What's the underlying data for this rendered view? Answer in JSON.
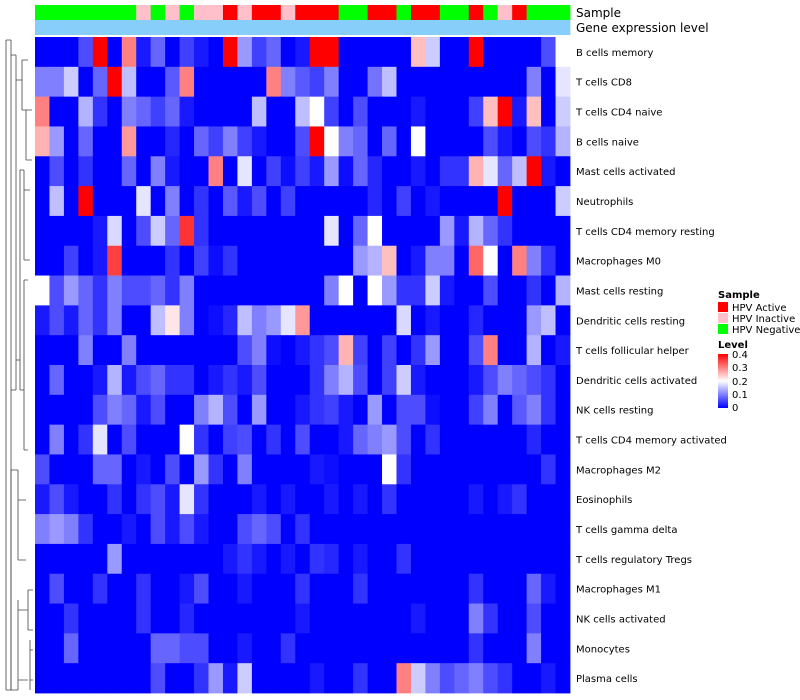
{
  "chart_data": {
    "type": "heatmap",
    "annotations": [
      {
        "name": "Sample",
        "legend_title": "Sample"
      },
      {
        "name": "Gene expression level"
      }
    ],
    "sample_legend": [
      {
        "label": "HPV Active",
        "color": "#ff0000"
      },
      {
        "label": "HPV Inactive",
        "color": "#ffc0cb"
      },
      {
        "label": "HPV Negative",
        "color": "#00ff00"
      }
    ],
    "level_legend": {
      "title": "Level",
      "ticks": [
        0.4,
        0.3,
        0.2,
        0.1,
        0
      ],
      "range": [
        0,
        0.4
      ],
      "colors": [
        "#0000ff",
        "#ffffff",
        "#ff0000"
      ]
    },
    "gene_expression_color": "#87cefa",
    "sample_groups": [
      "Negative",
      "Negative",
      "Negative",
      "Negative",
      "Negative",
      "Negative",
      "Negative",
      "Inactive",
      "Negative",
      "Inactive",
      "Negative",
      "Inactive",
      "Inactive",
      "Active",
      "Inactive",
      "Active",
      "Active",
      "Inactive",
      "Active",
      "Active",
      "Active",
      "Negative",
      "Negative",
      "Active",
      "Active",
      "Negative",
      "Active",
      "Active",
      "Negative",
      "Negative",
      "Active",
      "Negative",
      "Inactive",
      "Active",
      "Negative",
      "Negative",
      "Negative"
    ],
    "rows": [
      "B cells memory",
      "T cells CD8",
      "T cells CD4 naive",
      "B cells naive",
      "Mast cells activated",
      "Neutrophils",
      "T cells CD4 memory resting",
      "Macrophages M0",
      "Mast cells resting",
      "Dendritic cells resting",
      "T cells follicular helper",
      "Dendritic cells activated",
      "NK cells resting",
      "T cells CD4 memory activated",
      "Macrophages M2",
      "Eosinophils",
      "T cells gamma delta",
      "T cells regulatory  Tregs",
      "Macrophages M1",
      "NK cells activated",
      "Monocytes",
      "Plasma cells"
    ],
    "values": [
      [
        0,
        0,
        0,
        0.06,
        0.4,
        0,
        0.3,
        0.02,
        0.08,
        0,
        0.05,
        0.02,
        0,
        0.4,
        0.12,
        0.05,
        0.08,
        0,
        0.02,
        0.4,
        0.4,
        0,
        0,
        0,
        0,
        0,
        0.25,
        0.16,
        0,
        0,
        0.4,
        0,
        0,
        0,
        0,
        0.06,
        0.2
      ],
      [
        0.1,
        0.1,
        0.16,
        0,
        0.08,
        0.4,
        0.15,
        0,
        0,
        0.07,
        0.3,
        0,
        0,
        0,
        0,
        0,
        0.3,
        0.1,
        0.07,
        0.05,
        0.1,
        0,
        0,
        0.09,
        0.15,
        0,
        0,
        0,
        0,
        0,
        0,
        0,
        0,
        0,
        0.1,
        0,
        0.18
      ],
      [
        0.3,
        0,
        0,
        0.14,
        0.04,
        0,
        0.1,
        0.08,
        0.05,
        0.08,
        0.02,
        0,
        0,
        0,
        0,
        0.15,
        0,
        0,
        0.15,
        0.2,
        0.05,
        0,
        0.06,
        0,
        0,
        0,
        0.02,
        0,
        0,
        0,
        0.05,
        0.25,
        0.4,
        0.02,
        0.25,
        0,
        0.16
      ],
      [
        0.26,
        0.12,
        0,
        0.08,
        0,
        0,
        0.28,
        0,
        0,
        0.03,
        0,
        0.08,
        0.05,
        0.1,
        0.05,
        0.02,
        0,
        0,
        0.06,
        0.4,
        0.2,
        0.1,
        0.08,
        0,
        0.08,
        0,
        0.2,
        0,
        0,
        0,
        0,
        0.06,
        0.02,
        0,
        0.06,
        0.04,
        0.14
      ],
      [
        0,
        0.06,
        0,
        0.04,
        0,
        0,
        0.08,
        0,
        0.1,
        0.02,
        0,
        0,
        0.3,
        0,
        0.18,
        0,
        0.05,
        0.01,
        0.05,
        0.02,
        0.12,
        0.01,
        0.08,
        0.03,
        0,
        0,
        0.02,
        0,
        0.04,
        0.04,
        0.26,
        0.18,
        0.08,
        0.15,
        0.4,
        0.02,
        0
      ],
      [
        0,
        0.15,
        0,
        0.4,
        0,
        0,
        0,
        0.18,
        0,
        0.1,
        0,
        0.04,
        0,
        0.07,
        0.02,
        0.06,
        0,
        0.05,
        0,
        0,
        0,
        0,
        0,
        0.03,
        0,
        0.05,
        0,
        0.02,
        0,
        0,
        0,
        0,
        0.4,
        0,
        0,
        0,
        0.16
      ],
      [
        0,
        0,
        0,
        0,
        0.02,
        0.17,
        0,
        0.06,
        0.16,
        0.08,
        0.36,
        0.04,
        0,
        0,
        0,
        0,
        0,
        0,
        0,
        0,
        0.18,
        0,
        0.08,
        0.2,
        0,
        0,
        0,
        0,
        0.12,
        0.02,
        0.14,
        0.08,
        0.04,
        0,
        0,
        0,
        0
      ],
      [
        0,
        0,
        0.05,
        0,
        0.02,
        0.35,
        0,
        0,
        0,
        0.04,
        0,
        0.05,
        0.01,
        0.04,
        0,
        0,
        0,
        0,
        0,
        0,
        0,
        0,
        0.12,
        0.14,
        0.25,
        0,
        0.02,
        0.1,
        0.1,
        0,
        0.32,
        0.2,
        0,
        0.3,
        0.1,
        0.04,
        0
      ],
      [
        0.2,
        0.06,
        0.12,
        0.08,
        0.04,
        0.1,
        0.06,
        0.06,
        0.08,
        0.04,
        0.1,
        0,
        0,
        0,
        0,
        0,
        0,
        0,
        0,
        0,
        0.1,
        0.2,
        0,
        0.2,
        0.12,
        0.04,
        0.04,
        0.16,
        0.02,
        0,
        0,
        0.06,
        0,
        0,
        0.04,
        0,
        0.14
      ],
      [
        0.02,
        0.06,
        0.02,
        0.08,
        0.04,
        0.1,
        0,
        0,
        0.15,
        0.22,
        0.1,
        0,
        0.01,
        0.03,
        0.15,
        0.1,
        0.12,
        0.18,
        0.28,
        0,
        0,
        0,
        0,
        0,
        0,
        0.17,
        0,
        0.02,
        0,
        0,
        0.03,
        0,
        0,
        0,
        0.12,
        0.15,
        0
      ],
      [
        0,
        0,
        0,
        0.1,
        0,
        0,
        0.1,
        0,
        0,
        0,
        0,
        0,
        0,
        0,
        0.06,
        0.1,
        0.01,
        0,
        0.02,
        0.04,
        0.06,
        0.26,
        0.05,
        0,
        0.05,
        0,
        0.04,
        0.12,
        0,
        0,
        0.06,
        0.3,
        0,
        0,
        0.14,
        0,
        0.02
      ],
      [
        0,
        0.08,
        0,
        0,
        0.02,
        0.14,
        0.02,
        0.06,
        0.08,
        0.04,
        0.04,
        0,
        0.02,
        0.04,
        0.02,
        0.06,
        0,
        0,
        0,
        0.04,
        0.1,
        0.14,
        0.06,
        0,
        0.05,
        0.16,
        0.02,
        0,
        0,
        0,
        0.02,
        0.06,
        0.1,
        0.08,
        0.06,
        0.04,
        0
      ],
      [
        0,
        0,
        0,
        0,
        0.06,
        0.1,
        0.08,
        0.02,
        0.06,
        0,
        0,
        0.1,
        0.14,
        0.06,
        0,
        0.12,
        0,
        0,
        0.02,
        0.04,
        0.05,
        0.02,
        0,
        0.12,
        0,
        0.06,
        0.06,
        0.01,
        0,
        0,
        0.05,
        0.1,
        0,
        0.07,
        0.1,
        0.04,
        0
      ],
      [
        0,
        0.1,
        0,
        0.04,
        0.18,
        0,
        0.06,
        0,
        0,
        0,
        0.2,
        0.04,
        0,
        0.05,
        0.06,
        0,
        0.04,
        0,
        0.06,
        0,
        0,
        0.02,
        0.08,
        0.1,
        0.12,
        0.06,
        0,
        0.04,
        0,
        0,
        0,
        0,
        0,
        0,
        0.03,
        0,
        0
      ],
      [
        0.06,
        0,
        0,
        0,
        0.08,
        0.08,
        0,
        0.02,
        0,
        0.06,
        0,
        0.12,
        0.04,
        0,
        0.1,
        0,
        0,
        0,
        0,
        0.02,
        0.01,
        0,
        0,
        0,
        0.2,
        0.04,
        0,
        0,
        0,
        0,
        0,
        0,
        0,
        0,
        0,
        0.04,
        0
      ],
      [
        0.02,
        0.06,
        0.02,
        0,
        0,
        0.04,
        0,
        0.04,
        0.06,
        0.02,
        0.18,
        0.04,
        0,
        0,
        0,
        0.02,
        0,
        0.02,
        0,
        0,
        0.02,
        0,
        0.02,
        0,
        0.04,
        0,
        0,
        0,
        0,
        0,
        0.02,
        0,
        0.02,
        0.04,
        0,
        0,
        0
      ],
      [
        0.1,
        0.12,
        0.1,
        0.04,
        0,
        0,
        0.02,
        0,
        0.06,
        0.02,
        0.06,
        0.02,
        0,
        0,
        0.06,
        0.08,
        0.06,
        0,
        0.04,
        0,
        0,
        0,
        0,
        0,
        0,
        0,
        0,
        0,
        0,
        0,
        0,
        0,
        0,
        0,
        0,
        0,
        0
      ],
      [
        0,
        0,
        0,
        0,
        0,
        0.12,
        0,
        0,
        0,
        0,
        0,
        0,
        0,
        0.02,
        0.04,
        0.02,
        0,
        0.02,
        0,
        0.04,
        0.03,
        0,
        0.02,
        0,
        0,
        0.04,
        0,
        0,
        0,
        0,
        0,
        0,
        0,
        0,
        0,
        0,
        0
      ],
      [
        0,
        0.06,
        0,
        0,
        0.04,
        0,
        0,
        0.04,
        0,
        0,
        0.02,
        0.06,
        0,
        0,
        0.02,
        0,
        0,
        0,
        0.04,
        0,
        0,
        0,
        0.04,
        0,
        0,
        0,
        0,
        0,
        0,
        0,
        0.04,
        0,
        0,
        0,
        0.08,
        0.02,
        0
      ],
      [
        0,
        0,
        0.04,
        0,
        0,
        0,
        0,
        0.04,
        0,
        0,
        0.03,
        0,
        0,
        0,
        0,
        0,
        0,
        0,
        0.02,
        0,
        0,
        0,
        0,
        0,
        0,
        0,
        0.02,
        0,
        0,
        0,
        0.1,
        0.04,
        0,
        0,
        0.06,
        0,
        0
      ],
      [
        0,
        0,
        0.08,
        0,
        0,
        0,
        0,
        0,
        0.08,
        0.08,
        0.06,
        0.06,
        0,
        0,
        0.02,
        0,
        0,
        0.04,
        0,
        0,
        0,
        0,
        0,
        0,
        0,
        0,
        0,
        0,
        0,
        0,
        0.04,
        0,
        0,
        0,
        0.1,
        0,
        0
      ],
      [
        0,
        0,
        0,
        0,
        0,
        0,
        0,
        0,
        0.06,
        0,
        0,
        0.04,
        0.12,
        0.02,
        0.16,
        0,
        0,
        0,
        0,
        0.02,
        0,
        0,
        0.04,
        0,
        0,
        0.3,
        0.16,
        0.1,
        0.06,
        0.08,
        0.1,
        0.06,
        0.04,
        0,
        0,
        0.02,
        0
      ]
    ]
  }
}
